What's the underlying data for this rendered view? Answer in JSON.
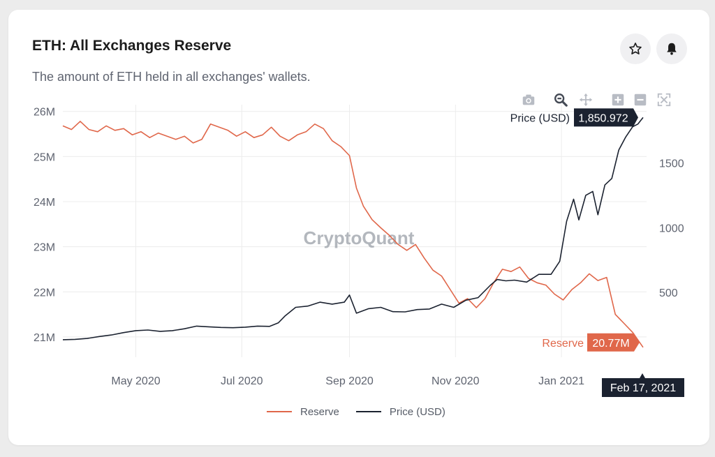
{
  "header": {
    "title": "ETH: All Exchanges Reserve",
    "subtitle": "The amount of ETH held in all exchanges' wallets."
  },
  "buttons": {
    "star": "star-icon",
    "bell": "bell-icon"
  },
  "modebar": [
    "camera-icon",
    "zoom-icon",
    "pan-icon",
    "zoom-in-icon",
    "zoom-out-icon",
    "autoscale-icon"
  ],
  "watermark": "CryptoQuant",
  "colors": {
    "reserve": "#e0674a",
    "price": "#1b2230",
    "grid": "#ececec",
    "axis_text": "#5f6470"
  },
  "hover": {
    "price_label": "Price (USD)",
    "price_value": "1,850.972",
    "reserve_label": "Reserve",
    "reserve_value": "20.77M",
    "date_label": "Feb 17, 2021"
  },
  "legend": [
    {
      "name": "Reserve",
      "color": "#e0674a"
    },
    {
      "name": "Price (USD)",
      "color": "#1b2230"
    }
  ],
  "chart_data": {
    "type": "line",
    "title": "ETH: All Exchanges Reserve",
    "x_range": [
      "2020-03-20",
      "2021-02-19"
    ],
    "x_ticks": [
      {
        "date": "2020-05-01",
        "label": "May 2020"
      },
      {
        "date": "2020-07-01",
        "label": "Jul 2020"
      },
      {
        "date": "2020-09-01",
        "label": "Sep 2020"
      },
      {
        "date": "2020-11-01",
        "label": "Nov 2020"
      },
      {
        "date": "2021-01-01",
        "label": "Jan 2021"
      }
    ],
    "y_left": {
      "range": [
        20.55,
        26.15
      ],
      "ticks": [
        21,
        22,
        23,
        24,
        25,
        26
      ],
      "tick_labels": [
        "21M",
        "22M",
        "23M",
        "24M",
        "25M",
        "26M"
      ]
    },
    "y_right": {
      "range": [
        0,
        1950
      ],
      "ticks": [
        500,
        1000,
        1500
      ],
      "tick_labels": [
        "500",
        "1000",
        "1500"
      ]
    },
    "grid": true,
    "legend_position": "bottom-center",
    "series": [
      {
        "name": "Reserve",
        "axis": "left",
        "unit": "M ETH",
        "points": [
          [
            "2020-03-20",
            25.68
          ],
          [
            "2020-03-25",
            25.6
          ],
          [
            "2020-03-30",
            25.78
          ],
          [
            "2020-04-04",
            25.6
          ],
          [
            "2020-04-09",
            25.55
          ],
          [
            "2020-04-14",
            25.68
          ],
          [
            "2020-04-19",
            25.58
          ],
          [
            "2020-04-24",
            25.62
          ],
          [
            "2020-04-29",
            25.48
          ],
          [
            "2020-05-04",
            25.55
          ],
          [
            "2020-05-09",
            25.42
          ],
          [
            "2020-05-14",
            25.52
          ],
          [
            "2020-05-19",
            25.45
          ],
          [
            "2020-05-24",
            25.38
          ],
          [
            "2020-05-29",
            25.45
          ],
          [
            "2020-06-03",
            25.3
          ],
          [
            "2020-06-08",
            25.38
          ],
          [
            "2020-06-13",
            25.72
          ],
          [
            "2020-06-18",
            25.65
          ],
          [
            "2020-06-23",
            25.58
          ],
          [
            "2020-06-28",
            25.45
          ],
          [
            "2020-07-03",
            25.55
          ],
          [
            "2020-07-08",
            25.42
          ],
          [
            "2020-07-13",
            25.48
          ],
          [
            "2020-07-18",
            25.65
          ],
          [
            "2020-07-23",
            25.45
          ],
          [
            "2020-07-28",
            25.35
          ],
          [
            "2020-08-02",
            25.48
          ],
          [
            "2020-08-07",
            25.55
          ],
          [
            "2020-08-12",
            25.72
          ],
          [
            "2020-08-17",
            25.62
          ],
          [
            "2020-08-22",
            25.35
          ],
          [
            "2020-08-27",
            25.22
          ],
          [
            "2020-09-01",
            25.02
          ],
          [
            "2020-09-05",
            24.3
          ],
          [
            "2020-09-09",
            23.9
          ],
          [
            "2020-09-14",
            23.6
          ],
          [
            "2020-09-19",
            23.42
          ],
          [
            "2020-09-24",
            23.25
          ],
          [
            "2020-09-29",
            23.05
          ],
          [
            "2020-10-04",
            22.92
          ],
          [
            "2020-10-09",
            23.05
          ],
          [
            "2020-10-14",
            22.75
          ],
          [
            "2020-10-19",
            22.48
          ],
          [
            "2020-10-24",
            22.35
          ],
          [
            "2020-10-29",
            22.05
          ],
          [
            "2020-11-03",
            21.75
          ],
          [
            "2020-11-08",
            21.85
          ],
          [
            "2020-11-13",
            21.65
          ],
          [
            "2020-11-18",
            21.85
          ],
          [
            "2020-11-23",
            22.2
          ],
          [
            "2020-11-28",
            22.5
          ],
          [
            "2020-12-03",
            22.45
          ],
          [
            "2020-12-08",
            22.55
          ],
          [
            "2020-12-13",
            22.3
          ],
          [
            "2020-12-18",
            22.2
          ],
          [
            "2020-12-23",
            22.15
          ],
          [
            "2020-12-28",
            21.95
          ],
          [
            "2021-01-02",
            21.82
          ],
          [
            "2021-01-07",
            22.05
          ],
          [
            "2021-01-12",
            22.2
          ],
          [
            "2021-01-17",
            22.4
          ],
          [
            "2021-01-22",
            22.25
          ],
          [
            "2021-01-27",
            22.32
          ],
          [
            "2021-02-01",
            21.5
          ],
          [
            "2021-02-06",
            21.3
          ],
          [
            "2021-02-11",
            21.1
          ],
          [
            "2021-02-17",
            20.77
          ]
        ]
      },
      {
        "name": "Price (USD)",
        "axis": "right",
        "unit": "USD",
        "points": [
          [
            "2020-03-20",
            135
          ],
          [
            "2020-03-27",
            138
          ],
          [
            "2020-04-03",
            145
          ],
          [
            "2020-04-10",
            160
          ],
          [
            "2020-04-17",
            172
          ],
          [
            "2020-04-24",
            190
          ],
          [
            "2020-05-01",
            205
          ],
          [
            "2020-05-08",
            210
          ],
          [
            "2020-05-15",
            200
          ],
          [
            "2020-05-22",
            205
          ],
          [
            "2020-05-29",
            220
          ],
          [
            "2020-06-05",
            240
          ],
          [
            "2020-06-12",
            235
          ],
          [
            "2020-06-19",
            230
          ],
          [
            "2020-06-26",
            228
          ],
          [
            "2020-07-03",
            232
          ],
          [
            "2020-07-10",
            240
          ],
          [
            "2020-07-17",
            238
          ],
          [
            "2020-07-22",
            265
          ],
          [
            "2020-07-26",
            320
          ],
          [
            "2020-08-01",
            385
          ],
          [
            "2020-08-08",
            395
          ],
          [
            "2020-08-15",
            425
          ],
          [
            "2020-08-22",
            410
          ],
          [
            "2020-08-29",
            425
          ],
          [
            "2020-09-01",
            480
          ],
          [
            "2020-09-05",
            340
          ],
          [
            "2020-09-12",
            375
          ],
          [
            "2020-09-19",
            385
          ],
          [
            "2020-09-26",
            352
          ],
          [
            "2020-10-03",
            350
          ],
          [
            "2020-10-10",
            368
          ],
          [
            "2020-10-17",
            372
          ],
          [
            "2020-10-24",
            410
          ],
          [
            "2020-10-31",
            385
          ],
          [
            "2020-11-07",
            440
          ],
          [
            "2020-11-14",
            460
          ],
          [
            "2020-11-21",
            555
          ],
          [
            "2020-11-25",
            600
          ],
          [
            "2020-11-30",
            590
          ],
          [
            "2020-12-05",
            595
          ],
          [
            "2020-12-12",
            580
          ],
          [
            "2020-12-19",
            640
          ],
          [
            "2020-12-26",
            640
          ],
          [
            "2020-12-31",
            740
          ],
          [
            "2021-01-04",
            1050
          ],
          [
            "2021-01-08",
            1220
          ],
          [
            "2021-01-11",
            1060
          ],
          [
            "2021-01-15",
            1250
          ],
          [
            "2021-01-19",
            1280
          ],
          [
            "2021-01-22",
            1100
          ],
          [
            "2021-01-26",
            1330
          ],
          [
            "2021-01-30",
            1380
          ],
          [
            "2021-02-03",
            1600
          ],
          [
            "2021-02-07",
            1700
          ],
          [
            "2021-02-11",
            1780
          ],
          [
            "2021-02-14",
            1800
          ],
          [
            "2021-02-17",
            1850.972
          ]
        ]
      }
    ]
  }
}
